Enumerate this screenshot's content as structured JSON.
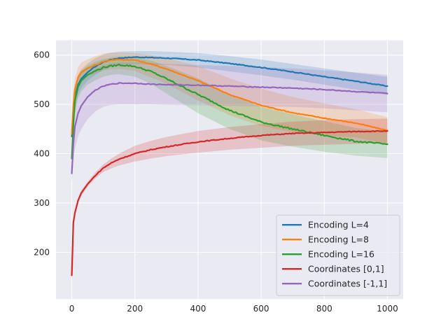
{
  "chart_data": {
    "type": "line",
    "title": "",
    "xlabel": "",
    "ylabel": "",
    "xlim": [
      -50,
      1050
    ],
    "ylim": [
      105,
      630
    ],
    "xticks": [
      0,
      200,
      400,
      600,
      800,
      1000
    ],
    "yticks": [
      200,
      300,
      400,
      500,
      600
    ],
    "grid": true,
    "legend_position": "lower-right",
    "series": [
      {
        "name": "Encoding L=4",
        "color": "#1f77b4",
        "x": [
          0,
          5,
          10,
          20,
          30,
          50,
          75,
          100,
          125,
          150,
          200,
          250,
          300,
          400,
          500,
          600,
          700,
          800,
          900,
          1000
        ],
        "y": [
          435,
          490,
          515,
          540,
          552,
          565,
          577,
          586,
          591,
          594,
          596,
          595,
          594,
          590,
          583,
          575,
          566,
          556,
          547,
          537
        ],
        "band_low": [
          415,
          460,
          490,
          520,
          533,
          548,
          560,
          570,
          576,
          580,
          582,
          581,
          580,
          575,
          567,
          559,
          550,
          540,
          530,
          519
        ],
        "band_high": [
          455,
          520,
          540,
          560,
          571,
          583,
          594,
          601,
          605,
          607,
          608,
          608,
          607,
          604,
          598,
          591,
          582,
          573,
          564,
          556
        ]
      },
      {
        "name": "Encoding L=8",
        "color": "#ff7f0e",
        "x": [
          0,
          5,
          10,
          20,
          30,
          50,
          75,
          100,
          125,
          150,
          200,
          250,
          300,
          400,
          500,
          600,
          700,
          800,
          900,
          1000
        ],
        "y": [
          440,
          498,
          530,
          555,
          565,
          573,
          580,
          587,
          590,
          591,
          590,
          582,
          572,
          548,
          520,
          498,
          483,
          472,
          462,
          447
        ],
        "band_low": [
          420,
          470,
          505,
          535,
          545,
          556,
          563,
          569,
          571,
          572,
          568,
          555,
          542,
          508,
          478,
          456,
          444,
          437,
          433,
          420
        ],
        "band_high": [
          460,
          525,
          553,
          575,
          585,
          591,
          598,
          603,
          605,
          605,
          604,
          600,
          594,
          578,
          553,
          532,
          515,
          502,
          490,
          474
        ]
      },
      {
        "name": "Encoding L=16",
        "color": "#2ca02c",
        "x": [
          0,
          5,
          10,
          20,
          30,
          50,
          75,
          100,
          125,
          150,
          175,
          200,
          250,
          300,
          400,
          500,
          600,
          700,
          800,
          900,
          1000
        ],
        "y": [
          390,
          460,
          508,
          535,
          548,
          560,
          568,
          575,
          578,
          580,
          579,
          577,
          567,
          552,
          520,
          488,
          464,
          450,
          437,
          425,
          419
        ],
        "band_low": [
          370,
          430,
          480,
          512,
          526,
          540,
          549,
          556,
          560,
          561,
          559,
          556,
          542,
          522,
          482,
          450,
          427,
          414,
          404,
          396,
          391
        ],
        "band_high": [
          410,
          490,
          532,
          556,
          568,
          578,
          586,
          592,
          595,
          597,
          597,
          595,
          589,
          578,
          553,
          520,
          495,
          480,
          466,
          452,
          445
        ]
      },
      {
        "name": "Coordinates [0,1]",
        "color": "#d62728",
        "x": [
          0,
          5,
          10,
          20,
          30,
          50,
          75,
          100,
          125,
          150,
          200,
          250,
          300,
          400,
          500,
          600,
          700,
          800,
          900,
          1000
        ],
        "y": [
          153,
          260,
          280,
          305,
          320,
          338,
          356,
          371,
          381,
          389,
          400,
          408,
          414,
          424,
          431,
          437,
          441,
          443,
          445,
          446
        ],
        "band_low": [
          153,
          255,
          275,
          300,
          315,
          333,
          350,
          363,
          370,
          376,
          384,
          390,
          395,
          402,
          408,
          412,
          416,
          418,
          420,
          421
        ],
        "band_high": [
          153,
          265,
          285,
          310,
          325,
          343,
          362,
          378,
          390,
          400,
          416,
          426,
          434,
          446,
          454,
          460,
          465,
          468,
          470,
          471
        ]
      },
      {
        "name": "Coordinates [-1,1]",
        "color": "#9467bd",
        "x": [
          0,
          5,
          10,
          20,
          30,
          50,
          75,
          100,
          125,
          150,
          200,
          250,
          300,
          400,
          500,
          600,
          700,
          800,
          900,
          1000
        ],
        "y": [
          360,
          420,
          455,
          482,
          497,
          515,
          529,
          537,
          541,
          543,
          543,
          541,
          540,
          539,
          537,
          535,
          533,
          530,
          526,
          522
        ],
        "band_low": [
          340,
          385,
          410,
          435,
          450,
          470,
          486,
          495,
          499,
          500,
          500,
          500,
          499,
          498,
          497,
          496,
          495,
          492,
          488,
          484
        ],
        "band_high": [
          380,
          455,
          500,
          528,
          544,
          560,
          572,
          579,
          583,
          585,
          585,
          584,
          582,
          580,
          578,
          576,
          573,
          569,
          565,
          560
        ]
      }
    ]
  }
}
